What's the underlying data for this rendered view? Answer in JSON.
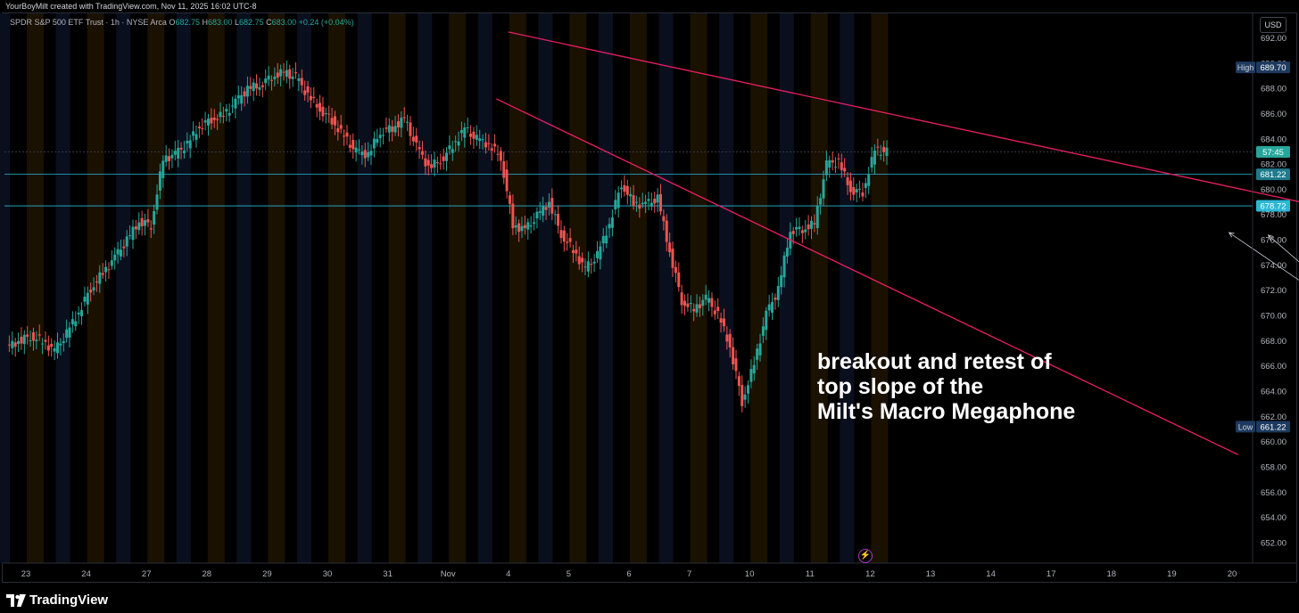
{
  "header": {
    "credit": "YourBoyMilt created with TradingView.com, Nov 11, 2025 16:02 UTC-8"
  },
  "legend": {
    "symbol": "SPDR S&P 500 ETF Trust · 1h · NYSE Arca",
    "o_label": "O",
    "o_value": "682.75",
    "h_label": "H",
    "h_value": "683.00",
    "l_label": "L",
    "l_value": "682.75",
    "c_label": "C",
    "c_value": "683.00",
    "change": "+0.24 (+0.04%)"
  },
  "currency_label": "USD",
  "annotation": {
    "lines": [
      "breakout and retest of",
      "top slope of the",
      "Milt's Macro Megaphone"
    ]
  },
  "branding": {
    "logo_text": "TradingView"
  },
  "colors": {
    "up": "#26a69a",
    "down": "#ef5350",
    "trendline": "#e91e63",
    "level_line": "#2ab8d4",
    "high_badge": "#1e3a5f",
    "low_badge": "#1e3a5f",
    "session_premarket": "#1a1100",
    "session_afterhours": "#0a0f1e"
  },
  "chart_data": {
    "type": "candlestick",
    "title": "SPDR S&P 500 ETF Trust · 1h · NYSE Arca",
    "ylim": [
      650.6,
      693.3
    ],
    "y_ticks": [
      "692.00",
      "690.00",
      "688.00",
      "686.00",
      "684.00",
      "682.00",
      "680.00",
      "678.00",
      "676.00",
      "674.00",
      "672.00",
      "670.00",
      "668.00",
      "666.00",
      "664.00",
      "662.00",
      "660.00",
      "658.00",
      "656.00",
      "654.00",
      "652.00"
    ],
    "x_ticks": [
      "23",
      "24",
      "27",
      "28",
      "29",
      "30",
      "31",
      "Nov",
      "4",
      "5",
      "6",
      "7",
      "10",
      "11",
      "12",
      "13",
      "14",
      "17",
      "18",
      "19",
      "20"
    ],
    "price_labels": [
      {
        "name": "high",
        "label": "High",
        "value": "689.70"
      },
      {
        "name": "current",
        "label": "",
        "value": "57:45"
      },
      {
        "name": "level-1",
        "label": "",
        "value": "681.22"
      },
      {
        "name": "level-2",
        "label": "",
        "value": "678.72"
      },
      {
        "name": "low",
        "label": "Low",
        "value": "661.22"
      }
    ],
    "horizontal_levels": [
      681.22,
      678.72
    ],
    "last_price": 683.0,
    "trendlines": [
      {
        "name": "upper-megaphone-line",
        "from": [
          8.0,
          692.5
        ],
        "to": [
          27.5,
          672.5
        ]
      },
      {
        "name": "lower-megaphone-line",
        "from": [
          7.8,
          687.2
        ],
        "to": [
          20.1,
          659.0
        ]
      }
    ],
    "annotation_arrows": [
      {
        "name": "arrow-to-breakout",
        "from": [
          22.75,
          667.5
        ],
        "to": [
          19.95,
          676.6
        ]
      },
      {
        "name": "arrow-to-retest",
        "from": [
          22.75,
          667.5
        ],
        "to": [
          20.6,
          676.4
        ]
      }
    ],
    "x_unit": "trading days since Oct 23 (tick index)",
    "sessions_per_day": [
      {
        "day": "23",
        "x": 0
      },
      {
        "day": "24",
        "x": 1
      },
      {
        "day": "27",
        "x": 2
      },
      {
        "day": "28",
        "x": 3
      },
      {
        "day": "29",
        "x": 4
      },
      {
        "day": "30",
        "x": 5
      },
      {
        "day": "31",
        "x": 6
      },
      {
        "day": "Nov",
        "x": 7
      },
      {
        "day": "4",
        "x": 8
      },
      {
        "day": "5",
        "x": 9
      },
      {
        "day": "6",
        "x": 10
      },
      {
        "day": "7",
        "x": 11
      },
      {
        "day": "10",
        "x": 12
      },
      {
        "day": "11",
        "x": 13
      },
      {
        "day": "12",
        "x": 14
      }
    ],
    "candles_close_path": [
      [
        -0.3,
        667.5
      ],
      [
        -0.1,
        668.0
      ],
      [
        0.1,
        668.4
      ],
      [
        0.3,
        668.0
      ],
      [
        0.5,
        667.2
      ],
      [
        0.7,
        668.6
      ],
      [
        0.9,
        670.3
      ],
      [
        1.1,
        672.2
      ],
      [
        1.3,
        673.4
      ],
      [
        1.5,
        674.6
      ],
      [
        1.7,
        676.0
      ],
      [
        1.9,
        677.5
      ],
      [
        2.1,
        677.2
      ],
      [
        2.3,
        682.4
      ],
      [
        2.5,
        682.8
      ],
      [
        2.7,
        683.6
      ],
      [
        2.9,
        685.0
      ],
      [
        3.1,
        685.6
      ],
      [
        3.3,
        685.9
      ],
      [
        3.5,
        686.9
      ],
      [
        3.7,
        688.0
      ],
      [
        3.9,
        688.3
      ],
      [
        4.1,
        689.0
      ],
      [
        4.3,
        689.3
      ],
      [
        4.5,
        688.9
      ],
      [
        4.7,
        687.5
      ],
      [
        4.9,
        686.4
      ],
      [
        5.1,
        685.5
      ],
      [
        5.3,
        684.2
      ],
      [
        5.5,
        683.0
      ],
      [
        5.7,
        682.8
      ],
      [
        5.9,
        684.6
      ],
      [
        6.1,
        684.9
      ],
      [
        6.3,
        685.6
      ],
      [
        6.5,
        683.4
      ],
      [
        6.7,
        681.8
      ],
      [
        6.9,
        682.3
      ],
      [
        7.1,
        683.5
      ],
      [
        7.3,
        684.8
      ],
      [
        7.5,
        684.0
      ],
      [
        7.7,
        683.6
      ],
      [
        7.9,
        682.6
      ],
      [
        8.1,
        677.2
      ],
      [
        8.3,
        676.8
      ],
      [
        8.5,
        677.9
      ],
      [
        8.7,
        679.0
      ],
      [
        8.9,
        676.5
      ],
      [
        9.1,
        675.2
      ],
      [
        9.3,
        673.7
      ],
      [
        9.5,
        674.8
      ],
      [
        9.7,
        677.3
      ],
      [
        9.9,
        680.5
      ],
      [
        10.1,
        678.9
      ],
      [
        10.3,
        678.8
      ],
      [
        10.5,
        679.3
      ],
      [
        10.7,
        675.1
      ],
      [
        10.9,
        671.2
      ],
      [
        11.1,
        670.5
      ],
      [
        11.3,
        671.4
      ],
      [
        11.5,
        670.1
      ],
      [
        11.7,
        667.6
      ],
      [
        11.9,
        663.2
      ],
      [
        12.1,
        666.2
      ],
      [
        12.3,
        670.1
      ],
      [
        12.5,
        672.1
      ],
      [
        12.7,
        676.8
      ],
      [
        12.9,
        676.9
      ],
      [
        13.1,
        677.3
      ],
      [
        13.3,
        682.0
      ],
      [
        13.5,
        682.2
      ],
      [
        13.7,
        680.0
      ],
      [
        13.9,
        679.8
      ],
      [
        14.1,
        683.1
      ],
      [
        14.3,
        683.0
      ]
    ]
  }
}
